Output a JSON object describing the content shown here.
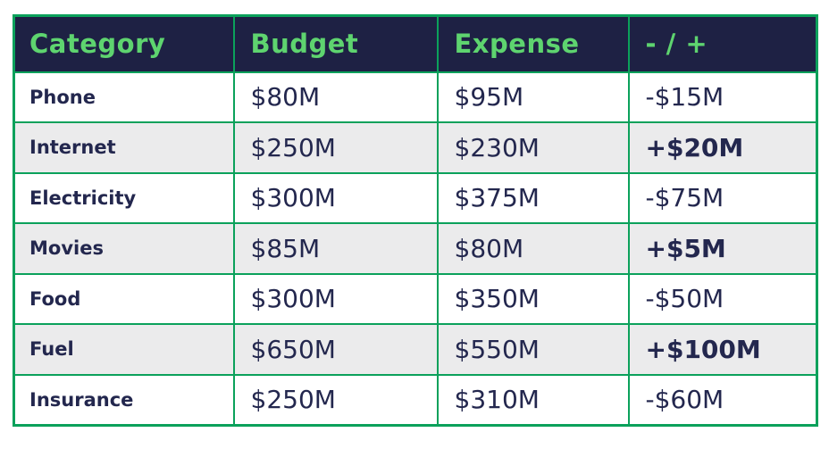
{
  "colors": {
    "header_bg": "#1e2144",
    "header_text_green": "#5ed46f",
    "border_green": "#0ba15b",
    "body_text_navy": "#23274e",
    "row_bg": "#ffffff",
    "row_alt_bg": "#ebebec"
  },
  "header": {
    "category": "Category",
    "budget": "Budget",
    "expense": "Expense",
    "delta": "- / +"
  },
  "rows": [
    {
      "category": "Phone",
      "budget": "$80M",
      "expense": "$95M",
      "delta": "-$15M",
      "delta_positive": false
    },
    {
      "category": "Internet",
      "budget": "$250M",
      "expense": "$230M",
      "delta": "+$20M",
      "delta_positive": true
    },
    {
      "category": "Electricity",
      "budget": "$300M",
      "expense": "$375M",
      "delta": "-$75M",
      "delta_positive": false
    },
    {
      "category": "Movies",
      "budget": "$85M",
      "expense": "$80M",
      "delta": "+$5M",
      "delta_positive": true
    },
    {
      "category": "Food",
      "budget": "$300M",
      "expense": "$350M",
      "delta": "-$50M",
      "delta_positive": false
    },
    {
      "category": "Fuel",
      "budget": "$650M",
      "expense": "$550M",
      "delta": "+$100M",
      "delta_positive": true
    },
    {
      "category": "Insurance",
      "budget": "$250M",
      "expense": "$310M",
      "delta": "-$60M",
      "delta_positive": false
    }
  ],
  "chart_data": {
    "type": "table",
    "title": "",
    "columns": [
      "Category",
      "Budget",
      "Expense",
      "- / +"
    ],
    "categories": [
      "Phone",
      "Internet",
      "Electricity",
      "Movies",
      "Food",
      "Fuel",
      "Insurance"
    ],
    "series": [
      {
        "name": "Budget ($M)",
        "values": [
          80,
          250,
          300,
          85,
          300,
          650,
          250
        ]
      },
      {
        "name": "Expense ($M)",
        "values": [
          95,
          230,
          375,
          80,
          350,
          550,
          310
        ]
      },
      {
        "name": "Difference ($M)",
        "values": [
          -15,
          20,
          -75,
          5,
          -50,
          100,
          -60
        ]
      }
    ],
    "unit": "$M",
    "layout": {
      "header_row": true,
      "alternating_rows": true,
      "positive_deltas_bold": true
    }
  }
}
